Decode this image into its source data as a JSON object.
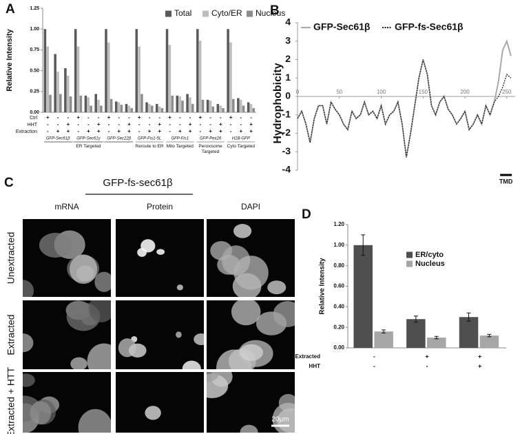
{
  "chart_data": [
    {
      "type": "bar",
      "panel_label": "A",
      "y_label": "Relative Intensity",
      "ylim": [
        0,
        1.25
      ],
      "yticks": [
        {
          "value": 0,
          "label": "0.00"
        },
        0.25,
        {
          "value": 0.5,
          "label": "0.50"
        },
        0.75,
        {
          "value": 1,
          "label": "1.00"
        },
        1.25
      ],
      "legend": "top-right",
      "series": [
        {
          "name": "Total",
          "color": "#5a5a5a",
          "values": [
            1.0,
            0.7,
            0.53,
            1.0,
            0.2,
            0.22,
            1.0,
            0.13,
            0.1,
            1.0,
            0.12,
            0.1,
            1.0,
            0.2,
            0.22,
            1.0,
            0.15,
            0.1,
            1.0,
            0.17,
            0.12
          ]
        },
        {
          "name": "Cyto/ER",
          "color": "#bdbdbd",
          "values": [
            0.79,
            0.49,
            0.44,
            0.79,
            0.18,
            0.15,
            0.84,
            0.12,
            0.08,
            0.79,
            0.1,
            0.07,
            0.81,
            0.19,
            0.18,
            0.86,
            0.14,
            0.08,
            0.84,
            0.15,
            0.1
          ]
        },
        {
          "name": "Nucleus",
          "color": "#8c8c8c",
          "values": [
            0.21,
            0.22,
            0.19,
            0.2,
            0.08,
            0.08,
            0.16,
            0.09,
            0.05,
            0.22,
            0.08,
            0.05,
            0.2,
            0.14,
            0.1,
            0.15,
            0.07,
            0.05,
            0.16,
            0.08,
            0.05
          ]
        }
      ],
      "condition_rows": [
        {
          "label": "Ctrl",
          "values": [
            "+",
            "-",
            "-",
            "+",
            "-",
            "-",
            "+",
            "-",
            "-",
            "+",
            "-",
            "-",
            "+",
            "-",
            "-",
            "+",
            "-",
            "-",
            "+",
            "-",
            "-"
          ]
        },
        {
          "label": "HHT",
          "values": [
            "-",
            "-",
            "+",
            "-",
            "-",
            "+",
            "-",
            "-",
            "+",
            "-",
            "-",
            "+",
            "-",
            "-",
            "+",
            "-",
            "-",
            "+",
            "-",
            "-",
            "+"
          ]
        },
        {
          "label": "Extraction",
          "values": [
            "-",
            "+",
            "+",
            "-",
            "+",
            "+",
            "-",
            "+",
            "+",
            "-",
            "+",
            "+",
            "-",
            "+",
            "+",
            "-",
            "+",
            "+",
            "-",
            "+",
            "+"
          ]
        }
      ],
      "constructs": [
        "GFP-Sec61β",
        "GFP-Sec61γ",
        "GFP-Sec22β",
        "GFP-Fis1-5L",
        "GFP-Fis1",
        "GFP-Pex26",
        "H1B-GFP"
      ],
      "targets": [
        "ER Targeted",
        "Reroute to ER",
        "Mito Targeted",
        "Peroxisome Targeted",
        "Cyto Targeted"
      ]
    },
    {
      "type": "line",
      "panel_label": "B",
      "y_label": "Hydrophobicity",
      "x": [
        0,
        5,
        10,
        15,
        20,
        25,
        30,
        35,
        40,
        45,
        50,
        55,
        60,
        65,
        70,
        75,
        80,
        85,
        90,
        95,
        100,
        105,
        110,
        115,
        120,
        125,
        130,
        135,
        140,
        145,
        150,
        155,
        160,
        165,
        170,
        175,
        180,
        185,
        190,
        195,
        200,
        205,
        210,
        215,
        220,
        225,
        230,
        235,
        240,
        245,
        250,
        255
      ],
      "xlim": [
        0,
        260
      ],
      "ylim": [
        -4,
        4
      ],
      "xticks": [
        0,
        50,
        100,
        150,
        200,
        250
      ],
      "yticks": [
        -4,
        -3,
        -2,
        -1,
        0,
        1,
        2,
        3,
        4
      ],
      "legend": "top",
      "series": [
        {
          "name": "GFP-Sec61β",
          "color": "#a8a8a8",
          "dash": false,
          "values": [
            -1.2,
            -0.8,
            -1.5,
            -2.5,
            -1.2,
            -0.5,
            -0.5,
            -1.5,
            -0.3,
            -0.7,
            -1.0,
            -1.5,
            -1.8,
            -0.8,
            -1.2,
            -1.0,
            -0.3,
            -1.0,
            -0.8,
            -1.2,
            -0.5,
            -1.5,
            -1.0,
            -0.8,
            -0.3,
            -1.5,
            -3.3,
            -2.0,
            -0.5,
            1.0,
            2.0,
            1.2,
            -0.5,
            -1.0,
            -0.3,
            0.0,
            -0.7,
            -1.0,
            -1.5,
            -1.2,
            -0.8,
            -1.8,
            -1.5,
            -1.0,
            -1.5,
            -0.5,
            -1.0,
            -0.3,
            0.8,
            2.5,
            3.0,
            2.2
          ]
        },
        {
          "name": "GFP-fs-Sec61β",
          "color": "#222222",
          "dash": true,
          "values": [
            -1.2,
            -0.8,
            -1.5,
            -2.5,
            -1.2,
            -0.5,
            -0.5,
            -1.5,
            -0.3,
            -0.7,
            -1.0,
            -1.5,
            -1.8,
            -0.8,
            -1.2,
            -1.0,
            -0.3,
            -1.0,
            -0.8,
            -1.2,
            -0.5,
            -1.5,
            -1.0,
            -0.8,
            -0.3,
            -1.5,
            -3.3,
            -2.0,
            -0.5,
            1.0,
            2.0,
            1.2,
            -0.5,
            -1.0,
            -0.3,
            0.0,
            -0.7,
            -1.0,
            -1.5,
            -1.2,
            -0.8,
            -1.8,
            -1.5,
            -1.0,
            -1.5,
            -0.5,
            -1.0,
            -0.3,
            0.0,
            0.5,
            1.2,
            1.0
          ]
        }
      ],
      "annotation": "TMD"
    },
    {
      "type": "bar",
      "panel_label": "D",
      "y_label": "Relative Intensity",
      "ylim": [
        0,
        1.2
      ],
      "yticks": [
        {
          "value": 0,
          "label": "0.00"
        },
        {
          "value": 0.2,
          "label": "0.20"
        },
        {
          "value": 0.4,
          "label": "0.40"
        },
        {
          "value": 0.6,
          "label": "0.60"
        },
        {
          "value": 0.8,
          "label": "0.80"
        },
        {
          "value": 1,
          "label": "1.00"
        },
        {
          "value": 1.2,
          "label": "1.20"
        }
      ],
      "legend": "top-right",
      "series": [
        {
          "name": "ER/cyto",
          "color": "#4f4f4f",
          "values": [
            1.0,
            0.28,
            0.3
          ],
          "errors": [
            0.1,
            0.03,
            0.04
          ]
        },
        {
          "name": "Nucleus",
          "color": "#a6a6a6",
          "values": [
            0.16,
            0.1,
            0.12
          ],
          "errors": [
            0.015,
            0.012,
            0.012
          ]
        }
      ],
      "condition_rows": [
        {
          "label": "Extracted",
          "values": [
            "-",
            "+",
            "+"
          ]
        },
        {
          "label": "HHT",
          "values": [
            "-",
            "-",
            "+"
          ]
        }
      ]
    }
  ],
  "panel_c": {
    "panel_label": "C",
    "title": "GFP-fs-sec61β",
    "columns": [
      "mRNA",
      "Protein",
      "DAPI"
    ],
    "rows": [
      "Unextracted",
      "Extracted",
      "Extracted + HTT"
    ],
    "scale_bar": "20μm"
  }
}
